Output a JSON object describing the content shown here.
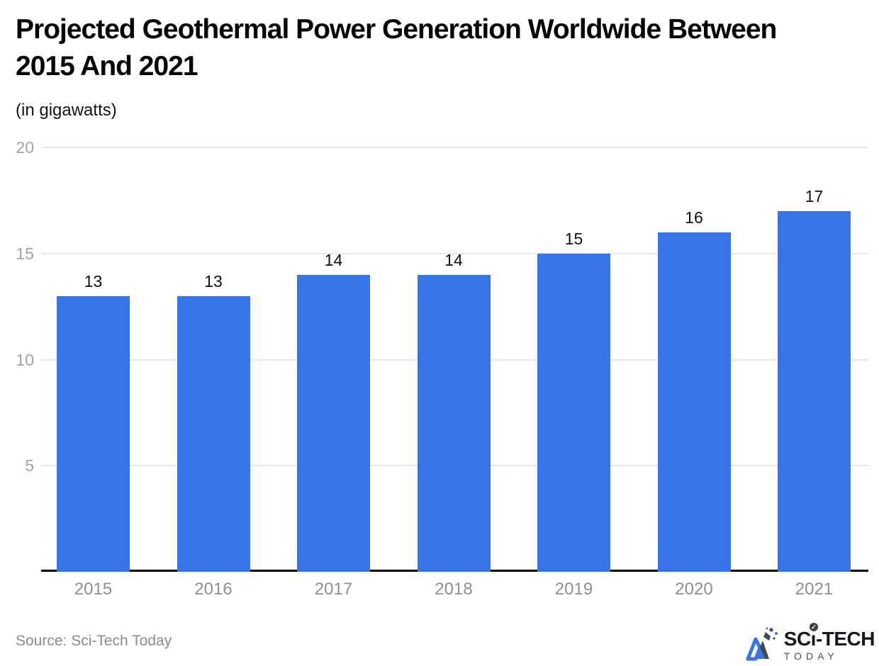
{
  "header": {
    "title": "Projected Geothermal Power Generation Worldwide Between 2015 And 2021",
    "title_line1": "Projected Geothermal Power Generation Worldwide Between",
    "title_line2": "2015 And 2021",
    "subtitle": "(in gigawatts)"
  },
  "chart_data": {
    "type": "bar",
    "title": "Projected Geothermal Power Generation Worldwide Between 2015 And 2021",
    "unit_label": "(in gigawatts)",
    "categories": [
      "2015",
      "2016",
      "2017",
      "2018",
      "2019",
      "2020",
      "2021"
    ],
    "values": [
      13,
      13,
      14,
      14,
      15,
      16,
      17
    ],
    "xlabel": "",
    "ylabel": "",
    "ylim": [
      0,
      20
    ],
    "yticks": [
      5,
      10,
      15,
      20
    ],
    "grid": "horizontal",
    "legend": "none",
    "bar_color": "#3575E8"
  },
  "colors": {
    "bar": "#3575E8",
    "gridline": "#E8E8E8",
    "axis_line": "#000000",
    "ytick_text": "#A3A3A3",
    "xtick_text": "#8F8F8F",
    "value_label_text": "#111111",
    "source_text": "#8C8C8C"
  },
  "footer": {
    "source": "Source: Sci-Tech Today",
    "logo": {
      "brand_prefix": "SC",
      "brand_i": "ı",
      "brand_suffix": "-TECH",
      "brand_sub": "TODAY"
    }
  },
  "icons": {
    "check": "✓"
  }
}
